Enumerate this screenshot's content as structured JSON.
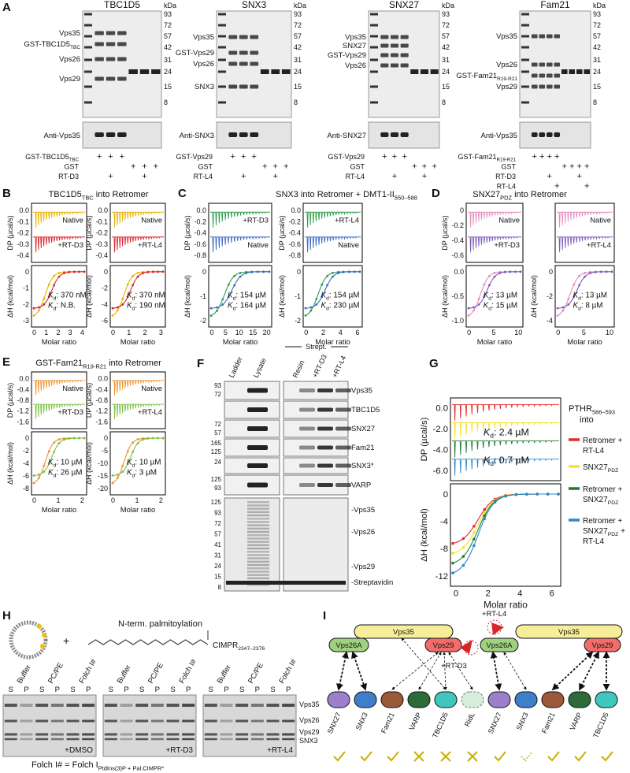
{
  "a": {
    "letter": "A",
    "kda": "kDa",
    "gels": [
      {
        "title": "TBC1D5",
        "markers": [
          "93",
          "72",
          "57",
          "42",
          "31",
          "24",
          "15",
          "8"
        ],
        "bands": [
          {
            "text": "Vps35"
          },
          {
            "text": "GST-TBC1D5",
            "sub": "TBC"
          },
          {
            "text": "Vps26"
          },
          {
            "text": "Vps29"
          }
        ],
        "blot": "Anti-Vps35",
        "rows": [
          {
            "label": {
              "text": "GST-TBC1D5",
              "sub": "TBC"
            },
            "marks": [
              "+",
              "+",
              "+",
              null,
              null,
              null
            ]
          },
          {
            "label": {
              "text": "GST"
            },
            "marks": [
              null,
              null,
              null,
              "+",
              "+",
              "+"
            ]
          },
          {
            "label": {
              "text": "RT-D3"
            },
            "marks": [
              null,
              "+",
              null,
              null,
              "+",
              null
            ]
          }
        ]
      },
      {
        "title": "SNX3",
        "markers": [
          "93",
          "72",
          "57",
          "42",
          "31",
          "24",
          "15",
          "8"
        ],
        "bands": [
          {
            "text": "Vps35"
          },
          {
            "text": "GST-Vps29"
          },
          {
            "text": "Vps26"
          },
          {
            "text": "SNX3"
          }
        ],
        "blot": "Anti-SNX3",
        "rows": [
          {
            "label": {
              "text": "GST-Vps29"
            },
            "marks": [
              "+",
              "+",
              "+",
              null,
              null,
              null
            ]
          },
          {
            "label": {
              "text": "GST"
            },
            "marks": [
              null,
              null,
              null,
              "+",
              "+",
              "+"
            ]
          },
          {
            "label": {
              "text": "RT-L4"
            },
            "marks": [
              null,
              "+",
              null,
              null,
              "+",
              null
            ]
          }
        ]
      },
      {
        "title": "SNX27",
        "markers": [
          "93",
          "72",
          "57",
          "42",
          "31",
          "24",
          "15",
          "8"
        ],
        "bands": [
          {
            "text": "Vps35"
          },
          {
            "text": "SNX27"
          },
          {
            "text": "GST-Vps29"
          },
          {
            "text": "Vps26"
          }
        ],
        "blot": "Anti-SNX27",
        "rows": [
          {
            "label": {
              "text": "GST-Vps29"
            },
            "marks": [
              "+",
              "+",
              "+",
              null,
              null,
              null
            ]
          },
          {
            "label": {
              "text": "GST"
            },
            "marks": [
              null,
              null,
              null,
              "+",
              "+",
              "+"
            ]
          },
          {
            "label": {
              "text": "RT-L4"
            },
            "marks": [
              null,
              "+",
              null,
              null,
              "+",
              null
            ]
          }
        ]
      },
      {
        "title": "Fam21",
        "markers": [
          "93",
          "72",
          "57",
          "42",
          "31",
          "24",
          "15",
          "8"
        ],
        "bands": [
          {
            "text": "Vps35"
          },
          {
            "text": "Vps26"
          },
          {
            "text": "GST-Fam21",
            "sub": "R19-R21"
          },
          {
            "text": "Vps29"
          }
        ],
        "blot": "Anti-Vps35",
        "rows": [
          {
            "label": {
              "text": "GST-Fam21",
              "sub": "R19-R21"
            },
            "marks": [
              "+",
              "+",
              "+",
              "+",
              null,
              null,
              null,
              null
            ]
          },
          {
            "label": {
              "text": "GST"
            },
            "marks": [
              null,
              null,
              null,
              null,
              "+",
              "+",
              "+",
              "+"
            ]
          },
          {
            "label": {
              "text": "RT-D3"
            },
            "marks": [
              null,
              null,
              "+",
              null,
              null,
              null,
              "+",
              null
            ]
          },
          {
            "label": {
              "text": "RT-L4"
            },
            "marks": [
              null,
              null,
              null,
              "+",
              null,
              null,
              null,
              "+"
            ]
          }
        ]
      }
    ]
  },
  "itc": {
    "dp_label": "DP (µcal/s)",
    "dh_label": "ΔH (kcal/mol)",
    "x_label": "Molar ratio",
    "kd": "K",
    "kd_sub": "d"
  },
  "b": {
    "letter": "B",
    "title": {
      "text": "TBC1D5",
      "sub": "TBC",
      "after": " into Retromer"
    },
    "plots": [
      {
        "dp_ticks": [
          "0.0",
          "-0.1",
          "-0.2",
          "-0.3",
          "-0.4"
        ],
        "dh_ticks": [
          "0",
          "-1",
          "-2",
          "-3"
        ],
        "x_ticks": [
          "0",
          "1",
          "2",
          "3",
          "4"
        ],
        "traces": [
          {
            "name": "Native",
            "color": "#e8b400"
          },
          {
            "name": "+RT-D3",
            "color": "#d7262b"
          }
        ],
        "kds": [
          {
            "value": ": 370 nM",
            "color": "#e0a400"
          },
          {
            "value": ": N.B.",
            "color": "#d7262b"
          }
        ]
      },
      {
        "dp_ticks": [
          "0.0",
          "-0.1",
          "-0.2",
          "-0.3",
          "-0.4"
        ],
        "dh_ticks": [
          "0",
          "-2",
          "-4",
          "-6"
        ],
        "x_ticks": [
          "0",
          "1",
          "2",
          "3"
        ],
        "traces": [
          {
            "name": "Native",
            "color": "#e8b400"
          },
          {
            "name": "+RT-L4",
            "color": "#d7262b"
          }
        ],
        "kds": [
          {
            "value": ": 370 nM",
            "color": "#e0a400"
          },
          {
            "value": ": 190 nM",
            "color": "#d7262b"
          }
        ]
      }
    ]
  },
  "c": {
    "letter": "C",
    "title": {
      "text": "SNX3 into Retromer + DMT1-II",
      "sub": "550–588"
    },
    "plots": [
      {
        "dp_ticks": [
          "0.0",
          "-0.2",
          "-0.4",
          "-0.6",
          "-0.8"
        ],
        "dh_ticks": [
          "0",
          "-1",
          "-2"
        ],
        "x_ticks": [
          "0",
          "5",
          "10",
          "15",
          "20"
        ],
        "traces": [
          {
            "name": "+RT-D3",
            "color": "#2e9b4b"
          },
          {
            "name": "Native",
            "color": "#3a6cc0"
          }
        ],
        "kds": [
          {
            "value": ": 154 µM",
            "color": "#3a6cc0"
          },
          {
            "value": ": 164 µM",
            "color": "#2e9b4b"
          }
        ]
      },
      {
        "dp_ticks": [
          "0.0",
          "-0.2",
          "-0.4",
          "-0.6",
          "-0.8"
        ],
        "dh_ticks": [
          "0",
          "-1",
          "-2"
        ],
        "x_ticks": [
          "0",
          "2",
          "4",
          "6"
        ],
        "traces": [
          {
            "name": "+RT-L4",
            "color": "#2e9b4b"
          },
          {
            "name": "Native",
            "color": "#3a6cc0"
          }
        ],
        "kds": [
          {
            "value": ": 154 µM",
            "color": "#3a6cc0"
          },
          {
            "value": ": 230 µM",
            "color": "#2e9b4b"
          }
        ]
      }
    ]
  },
  "d": {
    "letter": "D",
    "title": {
      "text": "SNX27",
      "sub": "PDZ",
      "after": " into Retromer"
    },
    "plots": [
      {
        "dp_ticks": [
          "0",
          "-0.2",
          "-0.4",
          "-0.6"
        ],
        "dh_ticks": [
          "0.0",
          "-0.5",
          "-1.0"
        ],
        "x_ticks": [
          "0",
          "5",
          "10"
        ],
        "traces": [
          {
            "name": "Native",
            "color": "#e58bbd"
          },
          {
            "name": "+RT-D3",
            "color": "#7c5db8"
          }
        ],
        "kds": [
          {
            "value": ": 13 µM",
            "color": "#e58bbd"
          },
          {
            "value": ": 15 µM",
            "color": "#7c5db8"
          }
        ]
      },
      {
        "dp_ticks": [],
        "dh_ticks": [
          "0",
          "-2",
          "-4"
        ],
        "x_ticks": [
          "0",
          "5",
          "10"
        ],
        "traces": [
          {
            "name": "Native",
            "color": "#e58bbd"
          },
          {
            "name": "+RT-L4",
            "color": "#7c5db8"
          }
        ],
        "kds": [
          {
            "value": ": 13 µM",
            "color": "#e58bbd"
          },
          {
            "value": ": 8 µM",
            "color": "#7c5db8"
          }
        ]
      }
    ]
  },
  "e": {
    "letter": "E",
    "title": {
      "text": "GST-Fam21",
      "sub": "R19-R21",
      "after": " into Retromer"
    },
    "plots": [
      {
        "dp_ticks": [
          "0.0",
          "-0.4",
          "-0.8",
          "-1.2",
          "-1.6"
        ],
        "dh_ticks": [
          "0",
          "-2",
          "-4",
          "-6",
          "-8"
        ],
        "x_ticks": [
          "0",
          "1",
          "2"
        ],
        "traces": [
          {
            "name": "Native",
            "color": "#f0922b"
          },
          {
            "name": "+RT-D3",
            "color": "#7cc043"
          }
        ],
        "kds": [
          {
            "value": ": 10 µM",
            "color": "#f0922b"
          },
          {
            "value": ": 26 µM",
            "color": "#7cc043"
          }
        ]
      },
      {
        "dp_ticks": [
          "0.0",
          "-0.4",
          "-0.8",
          "-1.2",
          "-1.6"
        ],
        "dh_ticks": [
          "0",
          "-5",
          "-10",
          "-15",
          "-20"
        ],
        "x_ticks": [
          "0",
          "1",
          "2"
        ],
        "traces": [
          {
            "name": "Native",
            "color": "#f0922b"
          },
          {
            "name": "+RT-L4",
            "color": "#7cc043"
          }
        ],
        "kds": [
          {
            "value": ": 10 µM",
            "color": "#f0922b"
          },
          {
            "value": ": 3 µM",
            "color": "#7cc043"
          }
        ]
      }
    ]
  },
  "f": {
    "letter": "F",
    "lanes": [
      "Ladder",
      "Lysate",
      "Resin",
      "+RT-D3",
      "+RT-L4"
    ],
    "strept": "Strept.",
    "rows": [
      {
        "markers": [
          "93",
          "72"
        ],
        "label": "Vps35"
      },
      {
        "markers": [],
        "label": "TBC1D5"
      },
      {
        "markers": [
          "72",
          "57"
        ],
        "label": "SNX27"
      },
      {
        "markers": [
          "165",
          "125"
        ],
        "label": "Fam21"
      },
      {
        "markers": [
          "24"
        ],
        "label": "SNX3*"
      },
      {
        "markers": [
          "125",
          "93"
        ],
        "label": "VARP"
      }
    ],
    "gel": {
      "markers": [
        "125",
        "93",
        "72",
        "57",
        "41",
        "31",
        "24",
        "15",
        "8"
      ],
      "labels": [
        "-Vps35",
        "-Vps26",
        "-Vps29",
        "-Streptavidin"
      ]
    }
  },
  "g": {
    "letter": "G",
    "header": {
      "text": "PTHR",
      "sub": "586–593"
    },
    "header2": "into",
    "plot": {
      "dp_ticks": [
        "0.0",
        "-2.0",
        "-4.0",
        "-6.0"
      ],
      "dh_ticks": [
        "0",
        "-4",
        "-8",
        "-12"
      ],
      "x_ticks": [
        "0",
        "2",
        "4",
        "6"
      ],
      "traces": [
        {
          "color": "#e22b2b",
          "lines": [
            {
              "text": "Retromer +"
            },
            {
              "text": "RT-L4"
            }
          ]
        },
        {
          "color": "#f2e22a",
          "lines": [
            {
              "text": "SNX27",
              "sub": "PDZ"
            }
          ]
        },
        {
          "color": "#1f7a35",
          "lines": [
            {
              "text": "Retromer +"
            },
            {
              "text": "SNX27",
              "sub": "PDZ"
            }
          ]
        },
        {
          "color": "#2d86c9",
          "lines": [
            {
              "text": "Retromer +"
            },
            {
              "text": "SNX27",
              "sub": "PDZ",
              "after": " +"
            },
            {
              "text": "RT-L4"
            }
          ]
        }
      ],
      "kds": [
        {
          "value": ": 2.4 µM",
          "color": "#1f7a35"
        },
        {
          "value": ": 0.7 µM",
          "color": "#2d86c9"
        }
      ]
    }
  },
  "h": {
    "letter": "H",
    "caption": "N-term. palmitoylation",
    "peptide": {
      "text": "CIMPR",
      "sub": "2347–2376"
    },
    "lanes": [
      "Buffer",
      "PC/PE",
      "Folch I#"
    ],
    "fractions": [
      "S",
      "P"
    ],
    "gels": [
      "+DMSO",
      "+RT-D3",
      "+RT-L4"
    ],
    "bands": [
      "Vps35",
      "Vps26",
      "Vps29",
      "SNX3"
    ],
    "footnote": {
      "text": "Folch I# = Folch I",
      "sub": "PtdIns(3)P + Pal.CIMPR*"
    }
  },
  "i": {
    "letter": "I",
    "core": [
      "Vps35",
      "Vps26A",
      "Vps29"
    ],
    "left": {
      "drug": "+RT-D3",
      "partners": [
        "SNX27",
        "SNX3",
        "Fam21",
        "VARP",
        "TBC1D5",
        "RidL"
      ]
    },
    "right": {
      "drug": "+RT-L4",
      "partners": [
        "SNX27",
        "SNX3",
        "Fam21",
        "VARP",
        "TBC1D5"
      ]
    }
  }
}
